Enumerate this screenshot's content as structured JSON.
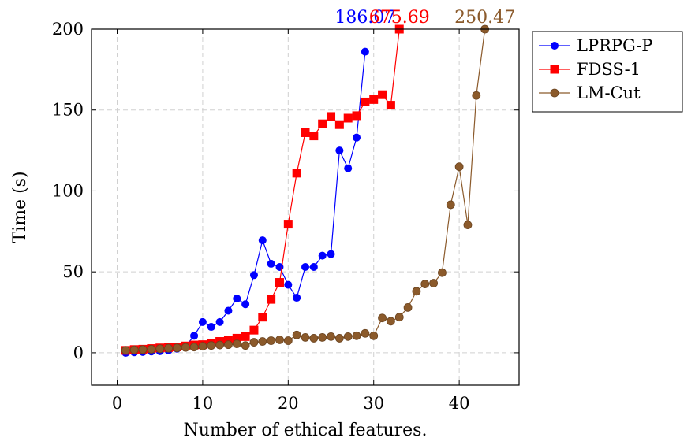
{
  "chart_data": {
    "type": "line",
    "xlabel": "Number of ethical features.",
    "ylabel": "Time (s)",
    "xlim": [
      -3,
      47
    ],
    "ylim": [
      -20,
      200
    ],
    "xticks": [
      0,
      10,
      20,
      30,
      40
    ],
    "yticks": [
      0,
      50,
      100,
      150,
      200
    ],
    "grid": true,
    "legend_position": "outside-top-right",
    "series": [
      {
        "name": "LPRPG-P",
        "color": "#0000ff",
        "marker": "circle",
        "x": [
          1,
          2,
          3,
          4,
          5,
          6,
          7,
          8,
          9,
          10,
          11,
          12,
          13,
          14,
          15,
          16,
          17,
          18,
          19,
          20,
          21,
          22,
          23,
          24,
          25,
          26,
          27,
          28,
          29
        ],
        "y": [
          0,
          0.3,
          0.5,
          0.8,
          1,
          1.5,
          2.5,
          4,
          10.5,
          19,
          16,
          19,
          26,
          33.5,
          30,
          48,
          69.5,
          55,
          53,
          42,
          34,
          53,
          53,
          60,
          61,
          125,
          114,
          133,
          186.07
        ]
      },
      {
        "name": "FDSS-1",
        "color": "#ff0000",
        "marker": "square",
        "x": [
          1,
          2,
          3,
          4,
          5,
          6,
          7,
          8,
          9,
          10,
          11,
          12,
          13,
          14,
          15,
          16,
          17,
          18,
          19,
          20,
          21,
          22,
          23,
          24,
          25,
          26,
          27,
          28,
          29,
          30,
          31,
          32,
          33
        ],
        "y": [
          1.5,
          2,
          2.2,
          2.6,
          3,
          3.2,
          3.6,
          4.2,
          4.8,
          5,
          6,
          7,
          7.5,
          9,
          10,
          14,
          22,
          33,
          43.5,
          79.5,
          111,
          136,
          134,
          141.5,
          146,
          141,
          145,
          146.5,
          155,
          156.5,
          159.5,
          153,
          200
        ]
      },
      {
        "name": "LM-Cut",
        "color": "#8b5a2b",
        "marker": "circle",
        "x": [
          1,
          2,
          3,
          4,
          5,
          6,
          7,
          8,
          9,
          10,
          11,
          12,
          13,
          14,
          15,
          16,
          17,
          18,
          19,
          20,
          21,
          22,
          23,
          24,
          25,
          26,
          27,
          28,
          29,
          30,
          31,
          32,
          33,
          34,
          35,
          36,
          37,
          38,
          39,
          40,
          41,
          42,
          43
        ],
        "y": [
          1.5,
          1.8,
          2,
          2.2,
          2.5,
          2.8,
          3,
          3.3,
          3.5,
          4,
          4.5,
          4.8,
          5,
          5.5,
          4.5,
          6.5,
          7,
          7.5,
          8,
          7.5,
          11,
          9.5,
          9,
          9.5,
          10,
          9,
          10,
          10.5,
          12,
          10.5,
          21.5,
          19.5,
          22,
          28,
          38,
          42.5,
          43,
          49.5,
          91.5,
          115,
          79,
          159,
          200
        ]
      }
    ],
    "annotations": [
      {
        "text": "186.07",
        "x": 29,
        "y": 200,
        "color": "#0000ff"
      },
      {
        "text": "675.69",
        "x": 33,
        "y": 200,
        "color": "#ff0000"
      },
      {
        "text": "250.47",
        "x": 43,
        "y": 200,
        "color": "#8b5a2b"
      }
    ]
  }
}
